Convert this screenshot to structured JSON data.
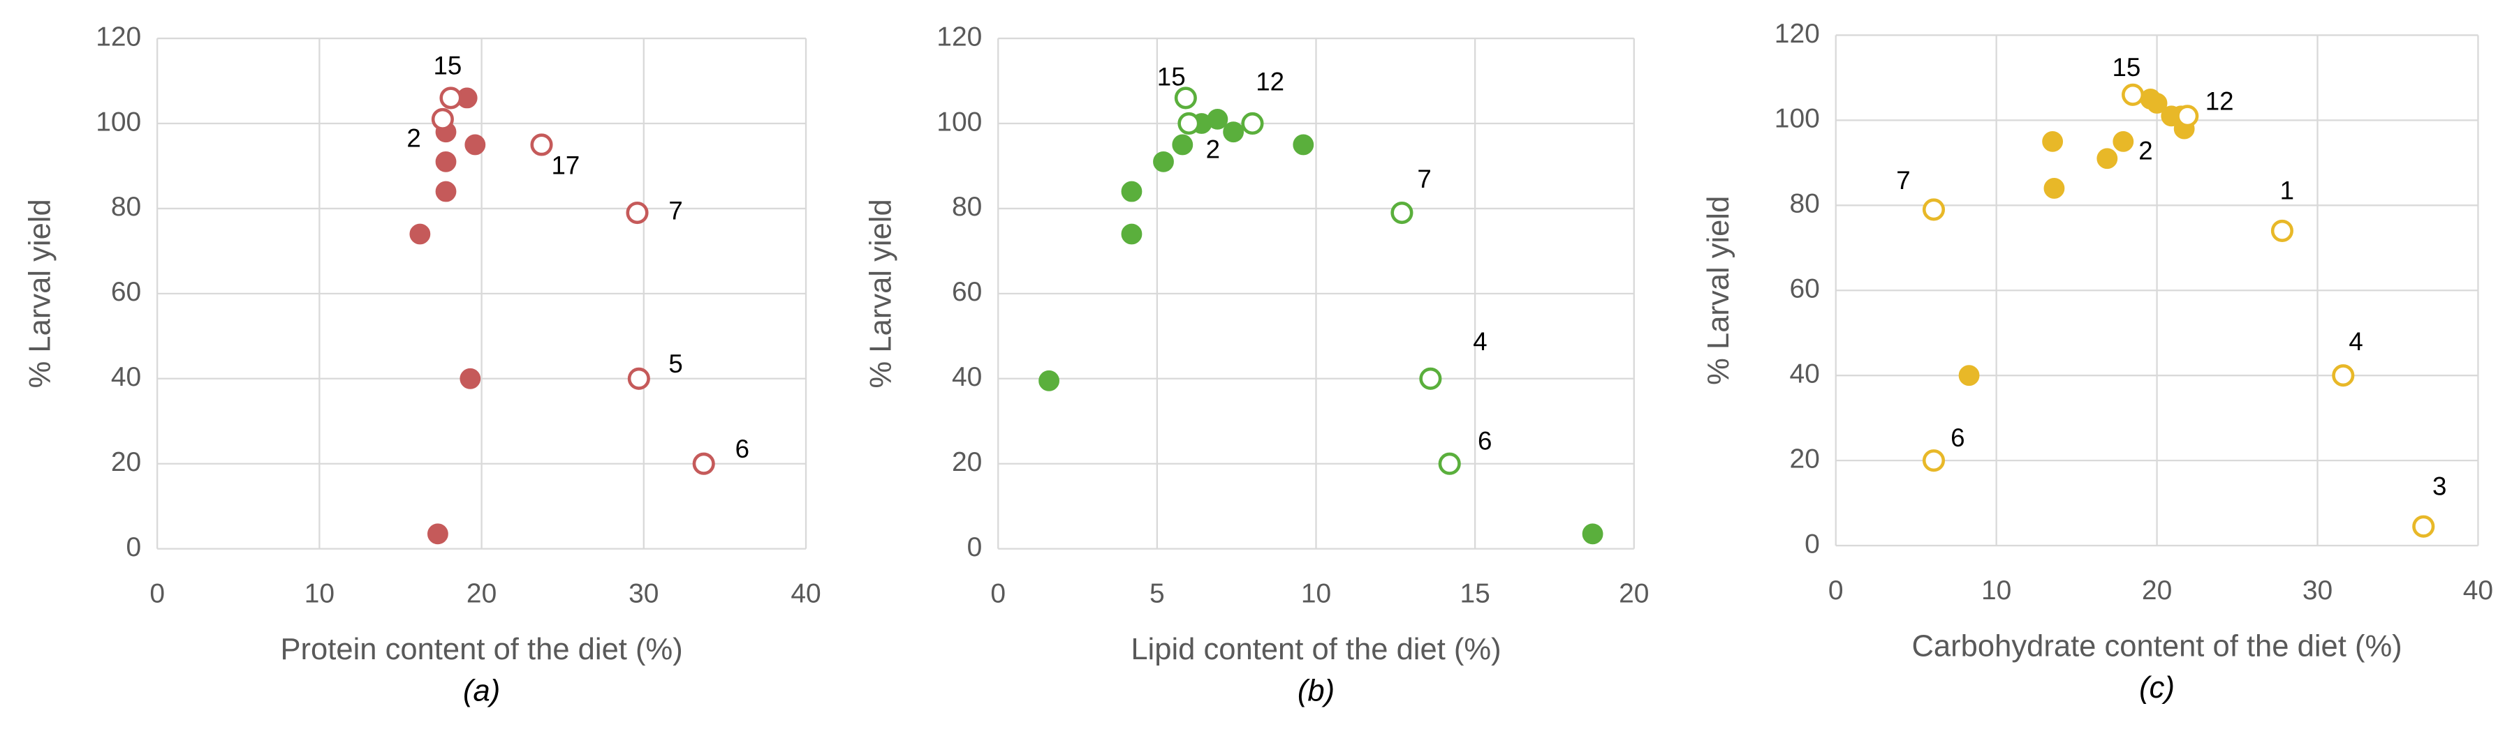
{
  "chart_data": [
    {
      "type": "scatter",
      "x_label": "Protein content of the diet  (%)",
      "y_label": "% Larval yield",
      "caption": "(a)",
      "xlim": [
        0,
        40
      ],
      "ylim": [
        0,
        120
      ],
      "xticks": [
        0,
        10,
        20,
        30,
        40
      ],
      "yticks": [
        0,
        20,
        40,
        60,
        80,
        100,
        120
      ],
      "grid": true,
      "series": [
        {
          "color": "#c55a5a",
          "marker": "filled",
          "x": [
            19.1,
            17.8,
            19.6,
            17.8,
            17.8,
            16.2,
            19.3,
            17.3
          ],
          "values": [
            106,
            98,
            95,
            91,
            84,
            74,
            40,
            3.5
          ],
          "point_labels": [
            null,
            "2",
            null,
            null,
            null,
            null,
            null,
            null
          ]
        },
        {
          "color": "#c55a5a",
          "marker": "open",
          "x": [
            18.1,
            17.6,
            23.7,
            29.6,
            29.7,
            33.7
          ],
          "values": [
            106,
            101,
            95,
            79,
            40,
            20
          ],
          "point_labels": [
            "15",
            null,
            "17",
            "7",
            "5",
            "6"
          ]
        }
      ]
    },
    {
      "type": "scatter",
      "x_label": "Lipid content of the diet (%)",
      "y_label": "% Larval yield",
      "caption": "(b)",
      "xlim": [
        0,
        20
      ],
      "ylim": [
        0,
        120
      ],
      "xticks": [
        0,
        5,
        10,
        15,
        20
      ],
      "yticks": [
        0,
        20,
        40,
        60,
        80,
        100,
        120
      ],
      "grid": true,
      "series": [
        {
          "color": "#5aaf3c",
          "marker": "filled",
          "x": [
            1.6,
            4.2,
            4.2,
            5.2,
            5.8,
            6.4,
            6.9,
            7.4,
            9.6,
            18.7
          ],
          "values": [
            39.5,
            74,
            84,
            91,
            95,
            100,
            101,
            98,
            95,
            3.5
          ],
          "point_labels": [
            null,
            null,
            null,
            null,
            "2",
            null,
            null,
            null,
            null,
            null
          ]
        },
        {
          "color": "#5aaf3c",
          "marker": "open",
          "x": [
            5.9,
            6.0,
            8.0,
            12.7,
            13.6,
            14.2
          ],
          "values": [
            106,
            100,
            100,
            79,
            40,
            20
          ],
          "point_labels": [
            "15",
            null,
            "12",
            "7",
            "4",
            "6"
          ]
        }
      ]
    },
    {
      "type": "scatter",
      "x_label": "Carbohydrate content of the diet (%)",
      "y_label": "% Larval yield",
      "caption": "(c)",
      "xlim": [
        0,
        40
      ],
      "ylim": [
        0,
        120
      ],
      "xticks": [
        0,
        10,
        20,
        30,
        40
      ],
      "yticks": [
        0,
        20,
        40,
        60,
        80,
        100,
        120
      ],
      "grid": true,
      "series": [
        {
          "color": "#e8b828",
          "marker": "filled",
          "x": [
            13.5,
            13.6,
            16.9,
            17.9,
            19.6,
            20.0,
            20.9,
            21.5,
            21.7,
            8.3
          ],
          "values": [
            95,
            84,
            91,
            95,
            105,
            104,
            101,
            101,
            98,
            40
          ],
          "point_labels": [
            null,
            null,
            null,
            "2",
            null,
            null,
            null,
            null,
            null,
            null
          ]
        },
        {
          "color": "#e8b828",
          "marker": "open",
          "x": [
            18.5,
            21.9,
            6.1,
            27.8,
            31.6,
            6.1,
            36.6
          ],
          "values": [
            106,
            101,
            79,
            74,
            40,
            20,
            4.5
          ],
          "point_labels": [
            "15",
            "12",
            "7",
            "1",
            "4",
            "6",
            "3"
          ]
        }
      ]
    }
  ]
}
